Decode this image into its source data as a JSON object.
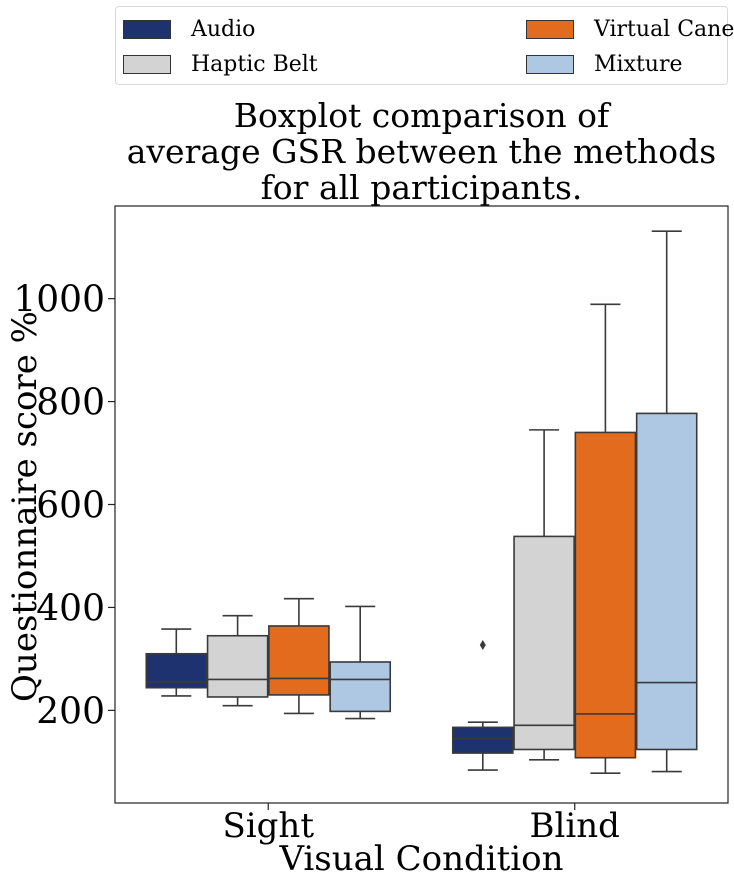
{
  "title_lines": [
    "Boxplot comparison of",
    "average GSR between the methods",
    "for all participants."
  ],
  "legend": [
    {
      "label": "Audio",
      "color": "#1f3270"
    },
    {
      "label": "Virtual Cane",
      "color": "#e36b1e"
    },
    {
      "label": "Haptic Belt",
      "color": "#d3d3d3"
    },
    {
      "label": "Mixture",
      "color": "#aec7e3"
    }
  ],
  "chart_data": {
    "type": "boxplot",
    "xlabel": "Visual Condition",
    "ylabel": "Questionnaire score %",
    "ylim": [
      20,
      1180
    ],
    "yticks": [
      200,
      400,
      600,
      800,
      1000
    ],
    "categories": [
      "Sight",
      "Blind"
    ],
    "legend_position": "top, above title, two columns",
    "grid": false,
    "series": [
      {
        "name": "Audio",
        "color": "#1f3270",
        "boxes": [
          {
            "whisker_low": 228,
            "q1": 244,
            "median": 255,
            "q3": 310,
            "whisker_high": 358,
            "outliers": []
          },
          {
            "whisker_low": 84,
            "q1": 117,
            "median": 145,
            "q3": 167,
            "whisker_high": 177,
            "outliers": [
              327
            ]
          }
        ]
      },
      {
        "name": "Haptic Belt",
        "color": "#d3d3d3",
        "boxes": [
          {
            "whisker_low": 209,
            "q1": 226,
            "median": 260,
            "q3": 345,
            "whisker_high": 384,
            "outliers": []
          },
          {
            "whisker_low": 104,
            "q1": 124,
            "median": 171,
            "q3": 538,
            "whisker_high": 745,
            "outliers": []
          }
        ]
      },
      {
        "name": "Virtual Cane",
        "color": "#e36b1e",
        "boxes": [
          {
            "whisker_low": 194,
            "q1": 230,
            "median": 262,
            "q3": 364,
            "whisker_high": 417,
            "outliers": []
          },
          {
            "whisker_low": 78,
            "q1": 108,
            "median": 193,
            "q3": 740,
            "whisker_high": 989,
            "outliers": []
          }
        ]
      },
      {
        "name": "Mixture",
        "color": "#aec7e3",
        "boxes": [
          {
            "whisker_low": 184,
            "q1": 198,
            "median": 260,
            "q3": 294,
            "whisker_high": 402,
            "outliers": []
          },
          {
            "whisker_low": 81,
            "q1": 124,
            "median": 254,
            "q3": 777,
            "whisker_high": 1131,
            "outliers": []
          }
        ]
      }
    ]
  }
}
